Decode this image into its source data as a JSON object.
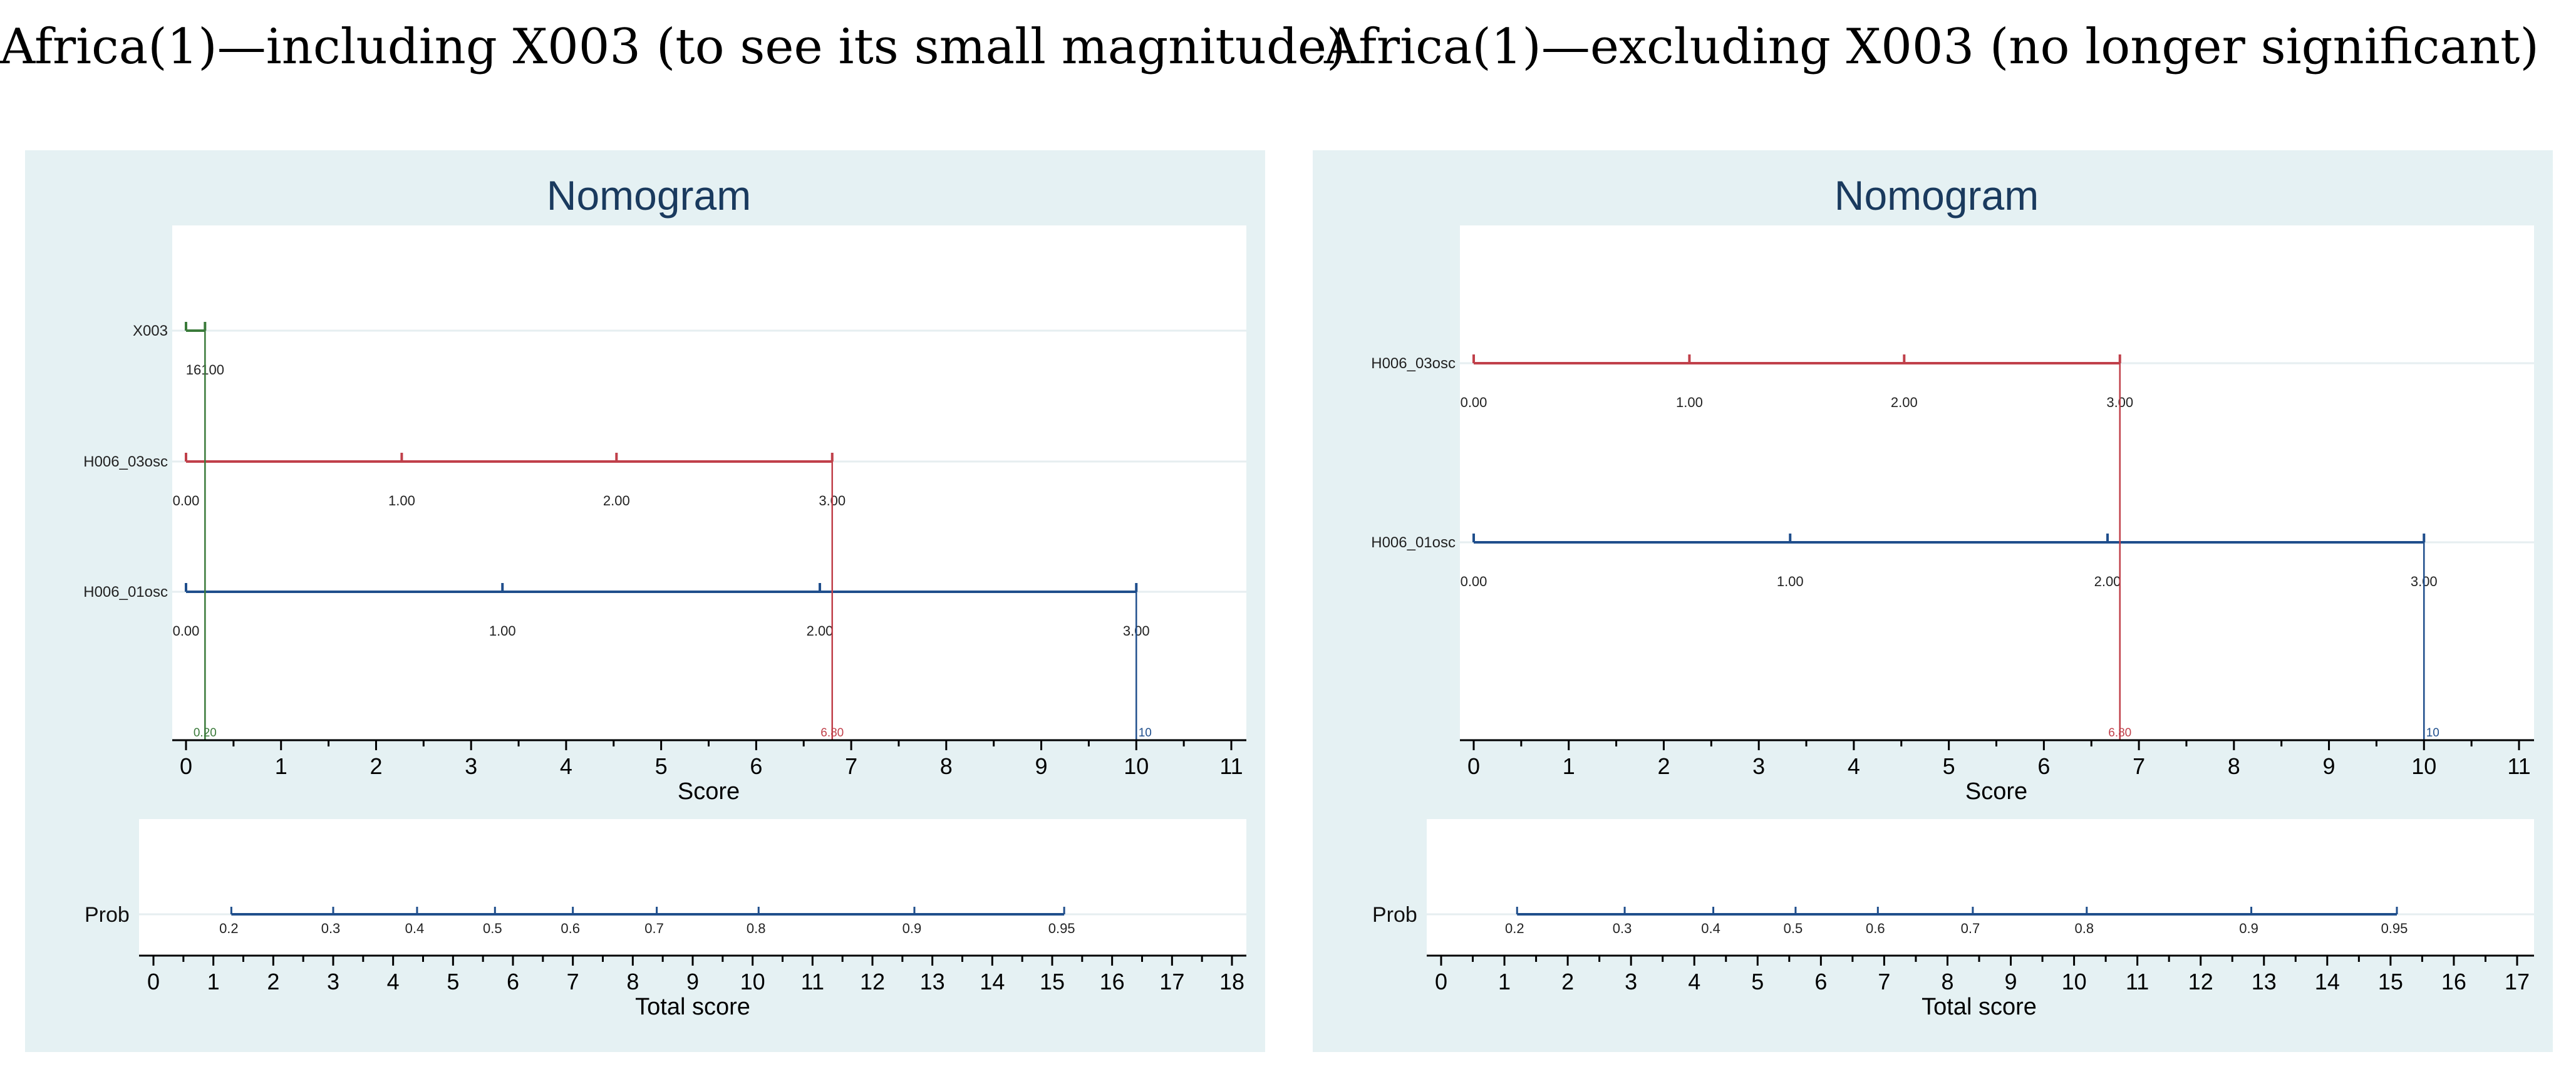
{
  "panels": [
    {
      "caption": "Africa(1)—including X003 (to see its small magnitude)",
      "plot_title": "Nomogram",
      "score_axis_label": "Score",
      "total_axis_label": "Total score",
      "prob_label": "Prob"
    },
    {
      "caption": "Africa(1)—excluding X003 (no longer significant)",
      "plot_title": "Nomogram",
      "score_axis_label": "Score",
      "total_axis_label": "Total score",
      "prob_label": "Prob"
    }
  ],
  "chart_data": [
    {
      "type": "nomogram",
      "title": "Nomogram",
      "score_axis": {
        "label": "Score",
        "range": [
          0,
          11
        ],
        "ticks": [
          0,
          1,
          2,
          3,
          4,
          5,
          6,
          7,
          8,
          9,
          10,
          11
        ]
      },
      "variables": [
        {
          "name": "X003",
          "color": "#3a7a3a",
          "score_range": [
            0,
            0.2
          ],
          "ticks": [
            {
              "score": 0,
              "label": ""
            },
            {
              "score": 0.2,
              "label": "16100"
            }
          ]
        },
        {
          "name": "H006_03osc",
          "color": "#c0404a",
          "score_range": [
            0,
            6.8
          ],
          "ticks": [
            {
              "score": 0,
              "label": "0.00"
            },
            {
              "score": 2.27,
              "label": "1.00"
            },
            {
              "score": 4.53,
              "label": "2.00"
            },
            {
              "score": 6.8,
              "label": "3.00"
            }
          ]
        },
        {
          "name": "H006_01osc",
          "color": "#1f4e8c",
          "score_range": [
            0,
            10
          ],
          "ticks": [
            {
              "score": 0,
              "label": "0.00"
            },
            {
              "score": 3.33,
              "label": "1.00"
            },
            {
              "score": 6.67,
              "label": "2.00"
            },
            {
              "score": 10,
              "label": "3.00"
            }
          ]
        }
      ],
      "reference_lines": [
        {
          "score": 0.2,
          "label": "0.20",
          "color": "#3a7a3a"
        },
        {
          "score": 6.8,
          "label": "6.80",
          "color": "#c0404a"
        },
        {
          "score": 10,
          "label": "10",
          "color": "#1f4e8c"
        }
      ],
      "total_axis": {
        "label": "Total score",
        "range": [
          0,
          18
        ],
        "ticks": [
          0,
          1,
          2,
          3,
          4,
          5,
          6,
          7,
          8,
          9,
          10,
          11,
          12,
          13,
          14,
          15,
          16,
          17,
          18
        ]
      },
      "probability": {
        "label": "Prob",
        "color": "#1f4e8c",
        "range": [
          1.3,
          15.2
        ],
        "ticks": [
          {
            "p": "0.2",
            "total": 1.3
          },
          {
            "p": "0.3",
            "total": 3.0
          },
          {
            "p": "0.4",
            "total": 4.4
          },
          {
            "p": "0.5",
            "total": 5.7
          },
          {
            "p": "0.6",
            "total": 7.0
          },
          {
            "p": "0.7",
            "total": 8.4
          },
          {
            "p": "0.8",
            "total": 10.1
          },
          {
            "p": "0.9",
            "total": 12.7
          },
          {
            "p": "0.95",
            "total": 15.2
          }
        ]
      }
    },
    {
      "type": "nomogram",
      "title": "Nomogram",
      "score_axis": {
        "label": "Score",
        "range": [
          0,
          11
        ],
        "ticks": [
          0,
          1,
          2,
          3,
          4,
          5,
          6,
          7,
          8,
          9,
          10,
          11
        ]
      },
      "variables": [
        {
          "name": "H006_03osc",
          "color": "#c0404a",
          "score_range": [
            0,
            6.8
          ],
          "ticks": [
            {
              "score": 0,
              "label": "0.00"
            },
            {
              "score": 2.27,
              "label": "1.00"
            },
            {
              "score": 4.53,
              "label": "2.00"
            },
            {
              "score": 6.8,
              "label": "3.00"
            }
          ]
        },
        {
          "name": "H006_01osc",
          "color": "#1f4e8c",
          "score_range": [
            0,
            10
          ],
          "ticks": [
            {
              "score": 0,
              "label": "0.00"
            },
            {
              "score": 3.33,
              "label": "1.00"
            },
            {
              "score": 6.67,
              "label": "2.00"
            },
            {
              "score": 10,
              "label": "3.00"
            }
          ]
        }
      ],
      "reference_lines": [
        {
          "score": 6.8,
          "label": "6.80",
          "color": "#c0404a"
        },
        {
          "score": 10,
          "label": "10",
          "color": "#1f4e8c"
        }
      ],
      "total_axis": {
        "label": "Total score",
        "range": [
          0,
          17
        ],
        "ticks": [
          0,
          1,
          2,
          3,
          4,
          5,
          6,
          7,
          8,
          9,
          10,
          11,
          12,
          13,
          14,
          15,
          16,
          17
        ]
      },
      "probability": {
        "label": "Prob",
        "color": "#1f4e8c",
        "range": [
          1.2,
          15.1
        ],
        "ticks": [
          {
            "p": "0.2",
            "total": 1.2
          },
          {
            "p": "0.3",
            "total": 2.9
          },
          {
            "p": "0.4",
            "total": 4.3
          },
          {
            "p": "0.5",
            "total": 5.6
          },
          {
            "p": "0.6",
            "total": 6.9
          },
          {
            "p": "0.7",
            "total": 8.4
          },
          {
            "p": "0.8",
            "total": 10.2
          },
          {
            "p": "0.9",
            "total": 12.8
          },
          {
            "p": "0.95",
            "total": 15.1
          }
        ]
      }
    }
  ]
}
